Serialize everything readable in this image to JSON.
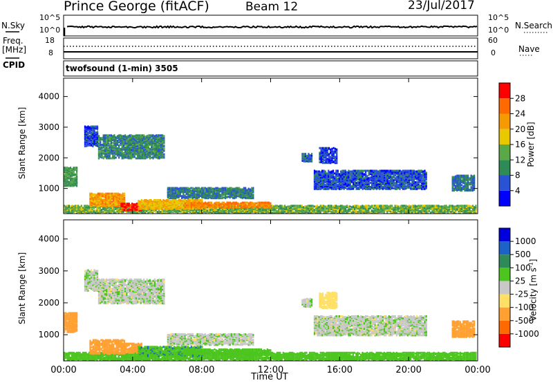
{
  "header": {
    "station": "Prince George (fitACF)",
    "beam": "Beam 12",
    "date": "23/Jul/2017"
  },
  "strip_labels": {
    "nsky": "N.Sky",
    "freq_top": "Freq.",
    "freq_unit": "[MHz]",
    "cpid": "CPID",
    "nsearch": "N.Search",
    "nave": "Nave",
    "sky_tick_top": "10^5",
    "sky_tick_bottom": "10^0",
    "search_tick_top": "10^5",
    "search_tick_bottom": "10^0",
    "freq_tick_top": "18",
    "freq_tick_bottom": "8",
    "nave_tick_top": "60",
    "nave_tick_bottom": "0",
    "cpid_text": "twofsound (1-min) 3505"
  },
  "colors": {
    "power_scale": [
      "#0000ff",
      "#2a52d4",
      "#2e8b57",
      "#5aa848",
      "#e8c800",
      "#f59a00",
      "#ff6a00",
      "#ff0000"
    ],
    "velocity_scale": [
      "#0000dd",
      "#1d62c6",
      "#2e8b57",
      "#4cc51e",
      "#c8c8c8",
      "#ffe066",
      "#ffa030",
      "#ff6a00",
      "#ff0000"
    ],
    "ground_scatter": "#bebebe"
  },
  "chart_data": [
    {
      "type": "heatmap",
      "name": "power",
      "xlabel": "",
      "ylabel": "Slant Range [km]",
      "xlim": [
        "00:00",
        "24:00"
      ],
      "ylim": [
        180,
        4600
      ],
      "yticks": [
        1000,
        2000,
        3000,
        4000
      ],
      "colorbar": {
        "label": "Power [dB]",
        "ticks": [
          4,
          8,
          12,
          16,
          20,
          24,
          28
        ],
        "range": [
          0,
          32
        ]
      },
      "regions": [
        {
          "t0": 0.0,
          "t1": 0.8,
          "r0": 1050,
          "r1": 1650,
          "value": 12
        },
        {
          "t0": 0.0,
          "t1": 23.9,
          "r0": 180,
          "r1": 420,
          "value": 14
        },
        {
          "t0": 1.2,
          "t1": 2.0,
          "r0": 2350,
          "r1": 3000,
          "value": 5
        },
        {
          "t0": 2.0,
          "t1": 5.8,
          "r0": 1950,
          "r1": 2700,
          "value": 10
        },
        {
          "t0": 1.5,
          "t1": 3.5,
          "r0": 380,
          "r1": 800,
          "value": 22
        },
        {
          "t0": 3.3,
          "t1": 4.5,
          "r0": 250,
          "r1": 480,
          "value": 30
        },
        {
          "t0": 4.3,
          "t1": 8.0,
          "r0": 300,
          "r1": 600,
          "value": 20
        },
        {
          "t0": 6.0,
          "t1": 11.0,
          "r0": 650,
          "r1": 1000,
          "value": 9
        },
        {
          "t0": 7.0,
          "t1": 12.0,
          "r0": 350,
          "r1": 520,
          "value": 24
        },
        {
          "t0": 14.5,
          "t1": 21.0,
          "r0": 950,
          "r1": 1550,
          "value": 6
        },
        {
          "t0": 22.5,
          "t1": 23.8,
          "r0": 900,
          "r1": 1400,
          "value": 8
        },
        {
          "t0": 13.8,
          "t1": 14.4,
          "r0": 1850,
          "r1": 2100,
          "value": 7
        },
        {
          "t0": 14.8,
          "t1": 15.8,
          "r0": 1800,
          "r1": 2300,
          "value": 5
        }
      ]
    },
    {
      "type": "heatmap",
      "name": "velocity",
      "xlabel": "Time UT",
      "ylabel": "Slant Range [km]",
      "xlim": [
        "00:00",
        "24:00"
      ],
      "ylim": [
        180,
        4600
      ],
      "xticks": [
        "00:00",
        "04:00",
        "08:00",
        "12:00",
        "16:00",
        "20:00",
        "00:00"
      ],
      "yticks": [
        1000,
        2000,
        3000,
        4000
      ],
      "colorbar": {
        "label": "Velocity [m s^-1]",
        "ticks": [
          "1000",
          "500",
          "100",
          "25",
          "-25",
          "-100",
          "-500",
          "-1000"
        ]
      },
      "regions": [
        {
          "t0": 0.0,
          "t1": 0.8,
          "r0": 1050,
          "r1": 1650,
          "value": -300
        },
        {
          "t0": 0.0,
          "t1": 23.9,
          "r0": 180,
          "r1": 420,
          "value": 60
        },
        {
          "t0": 1.2,
          "t1": 2.0,
          "r0": 2350,
          "r1": 3000,
          "value": 0
        },
        {
          "t0": 2.0,
          "t1": 5.8,
          "r0": 1950,
          "r1": 2700,
          "value": 0
        },
        {
          "t0": 1.5,
          "t1": 3.5,
          "r0": 380,
          "r1": 800,
          "value": -150
        },
        {
          "t0": 3.3,
          "t1": 4.5,
          "r0": 400,
          "r1": 700,
          "value": -200
        },
        {
          "t0": 4.3,
          "t1": 8.0,
          "r0": 300,
          "r1": 600,
          "value": 80
        },
        {
          "t0": 6.0,
          "t1": 11.0,
          "r0": 650,
          "r1": 1000,
          "value": 0
        },
        {
          "t0": 7.0,
          "t1": 12.0,
          "r0": 350,
          "r1": 520,
          "value": 70
        },
        {
          "t0": 14.5,
          "t1": 21.0,
          "r0": 950,
          "r1": 1550,
          "value": 0
        },
        {
          "t0": 22.5,
          "t1": 23.8,
          "r0": 900,
          "r1": 1400,
          "value": -400
        },
        {
          "t0": 13.8,
          "t1": 14.4,
          "r0": 1850,
          "r1": 2100,
          "value": 0
        },
        {
          "t0": 14.8,
          "t1": 15.8,
          "r0": 1800,
          "r1": 2300,
          "value": -60
        }
      ]
    }
  ]
}
